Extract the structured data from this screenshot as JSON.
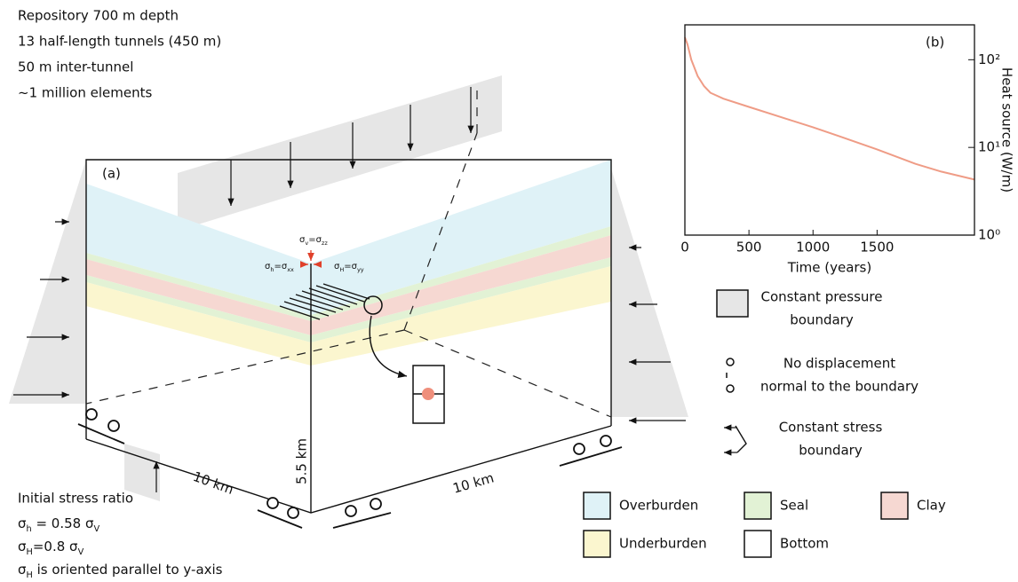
{
  "annotations": {
    "lines": [
      "Repository 700 m depth",
      "13 half-length tunnels (450 m)",
      "50 m inter-tunnel",
      "~1 million elements"
    ],
    "panel_label": "(a)"
  },
  "stress_labels": {
    "vertical": [
      "σ",
      "v",
      "=σ",
      "zz"
    ],
    "min_horizontal": [
      "σ",
      "h",
      "=σ",
      "xx"
    ],
    "max_horizontal": [
      "σ",
      "H",
      "=σ",
      "yy"
    ]
  },
  "dimensions": {
    "depth": "5.5 km",
    "width_x": "10 km",
    "width_y": "10 km"
  },
  "initial_stress": {
    "title": "Initial stress ratio",
    "lines": [
      [
        "σ",
        "h",
        " = 0.58 σ",
        "V"
      ],
      [
        "σ",
        "H",
        "=0.8 σ",
        "V"
      ],
      [
        "σ",
        "H",
        " is oriented parallel to y-axis"
      ]
    ]
  },
  "boundary_legend": [
    {
      "label": [
        "Constant pressure",
        "boundary"
      ]
    },
    {
      "label": [
        "No displacement",
        "normal to the boundary"
      ]
    },
    {
      "label": [
        "Constant stress",
        "boundary"
      ]
    }
  ],
  "layers": [
    {
      "name": "Overburden",
      "color": "#dff2f7"
    },
    {
      "name": "Seal",
      "color": "#e2f2d5"
    },
    {
      "name": "Clay",
      "color": "#f6d8d2"
    },
    {
      "name": "Underburden",
      "color": "#fbf6cf"
    },
    {
      "name": "Bottom",
      "color": "#ffffff"
    }
  ],
  "chart_data": {
    "type": "line",
    "panel_label": "(b)",
    "xlabel": "Time (years)",
    "ylabel": "Heat source (W/m)",
    "x": [
      0,
      20,
      50,
      100,
      150,
      200,
      300,
      500,
      800,
      1000,
      1200,
      1500,
      1800,
      2000,
      2260
    ],
    "values": [
      180,
      150,
      100,
      65,
      50,
      42,
      36,
      29,
      21,
      17,
      13.5,
      9.5,
      6.5,
      5.3,
      4.3
    ],
    "color": "#ef9c86",
    "log_y": true,
    "xlim": [
      0,
      2260
    ],
    "ylim": [
      1,
      250
    ],
    "xticks": [
      0,
      500,
      1000,
      1500
    ],
    "yticks": [
      {
        "value": 1,
        "label": "10⁰"
      },
      {
        "value": 10,
        "label": "10¹"
      },
      {
        "value": 100,
        "label": "10²"
      }
    ]
  }
}
